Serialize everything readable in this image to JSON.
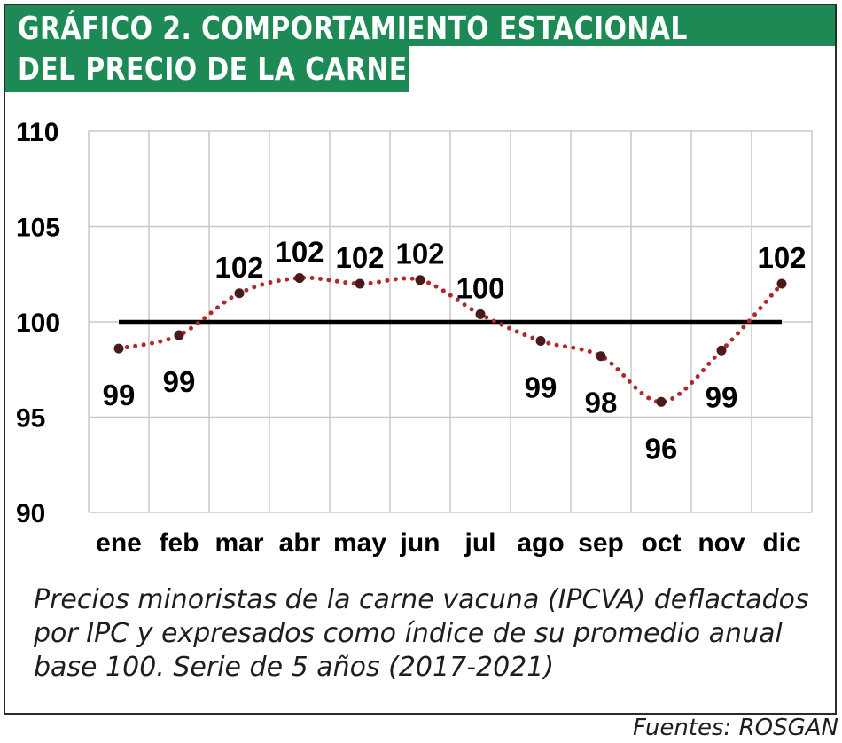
{
  "header": {
    "title_line1": "GRÁFICO 2. COMPORTAMIENTO ESTACIONAL",
    "title_line2": "DEL PRECIO DE LA CARNE"
  },
  "caption": {
    "line1": "Precios minoristas de la carne vacuna (IPCVA) deflactados",
    "line2": "por IPC y expresados como índice de su promedio anual",
    "line3": "base 100. Serie de 5 años (2017-2021)"
  },
  "source": "Fuentes: ROSGAN",
  "colors": {
    "header_bg": "#1d8a55",
    "series_line": "#b0282a",
    "marker": "#4a1a1a",
    "reference_line": "#000000",
    "grid": "#c8c8c8"
  },
  "chart_data": {
    "type": "line",
    "title": "GRÁFICO 2. COMPORTAMIENTO ESTACIONAL DEL PRECIO DE LA CARNE",
    "categories": [
      "ene",
      "feb",
      "mar",
      "abr",
      "may",
      "jun",
      "jul",
      "ago",
      "sep",
      "oct",
      "nov",
      "dic"
    ],
    "series": [
      {
        "values": [
          98.6,
          99.3,
          101.5,
          102.3,
          102.0,
          102.2,
          100.4,
          99.0,
          98.2,
          95.8,
          98.5,
          102.0
        ],
        "data_labels": [
          "99",
          "99",
          "102",
          "102",
          "102",
          "102",
          "100",
          "99",
          "98",
          "96",
          "99",
          "102"
        ],
        "style": "dotted"
      }
    ],
    "reference_line": 100,
    "ylim": [
      90,
      110
    ],
    "yticks": [
      90,
      95,
      100,
      105,
      110
    ],
    "xlabel": "",
    "ylabel": "",
    "grid": true,
    "legend": "none"
  }
}
